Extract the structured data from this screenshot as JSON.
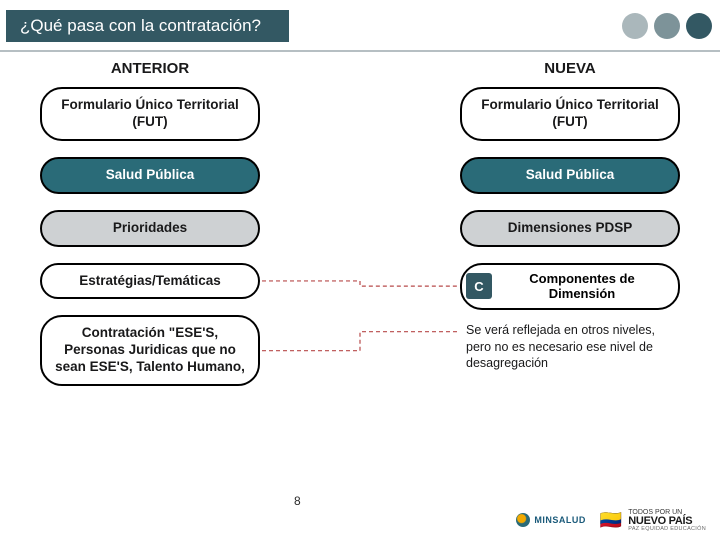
{
  "title": "¿Qué pasa con la contratación?",
  "decor_dots": [
    "#aab7bb",
    "#7d9399",
    "#335863"
  ],
  "columns": {
    "left": {
      "header": "ANTERIOR",
      "items": [
        {
          "label": "Formulario Único Territorial (FUT)",
          "style": "outline"
        },
        {
          "label": "Salud Pública",
          "style": "teal"
        },
        {
          "label": "Prioridades",
          "style": "gray"
        },
        {
          "label": "Estratégias/Temáticas",
          "style": "outline"
        },
        {
          "label": "Contratación \"ESE'S, Personas Juridicas que no sean ESE'S, Talento Humano,",
          "style": "outline"
        }
      ]
    },
    "right": {
      "header": "NUEVA",
      "items": [
        {
          "label": "Formulario Único Territorial (FUT)",
          "style": "outline"
        },
        {
          "label": "Salud Pública",
          "style": "teal"
        },
        {
          "label": "Dimensiones PDSP",
          "style": "gray"
        }
      ],
      "componentes": {
        "tag": "C",
        "label": "Componentes de Dimensión"
      },
      "note": "Se verá reflejada en otros niveles, pero no es necesario ese nivel de desagregación"
    }
  },
  "connector": {
    "color": "#b74a4a",
    "dash": "4 3",
    "width": 1.2
  },
  "page_number": "8",
  "logos": {
    "minsalud": "MINSALUD",
    "nuevopais_top": "TODOS POR UN",
    "nuevopais_main": "NUEVO PAÍS",
    "nuevopais_sub": "PAZ  EQUIDAD  EDUCACIÓN"
  }
}
